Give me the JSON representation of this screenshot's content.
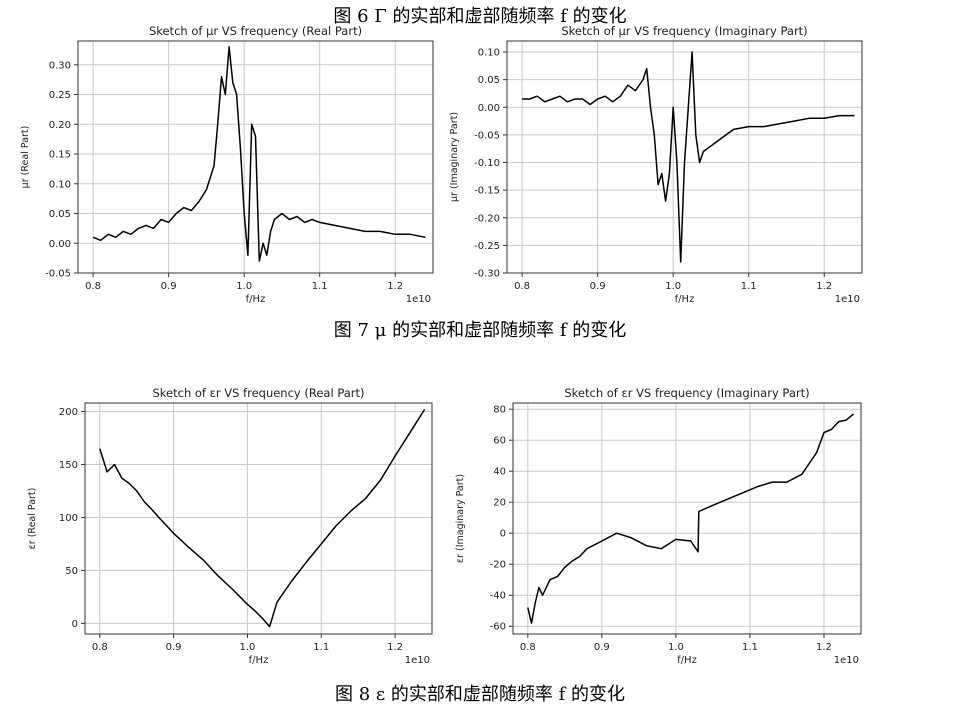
{
  "captions": {
    "fig6": "图 6    Γ 的实部和虚部随频率 f 的变化",
    "fig7": "图 7   μ 的实部和虚部随频率 f 的变化",
    "fig8": "图 8   ε 的实部和虚部随频率 f 的变化"
  },
  "chart_data": [
    {
      "type": "line",
      "title": "Sketch of μr VS frequency (Real Part)",
      "xlabel": "f/Hz",
      "ylabel": "μr (Real Part)",
      "x_scale_label": "1e10",
      "xlim": [
        0.78,
        1.25
      ],
      "ylim": [
        -0.05,
        0.34
      ],
      "xticks": [
        0.8,
        0.9,
        1.0,
        1.1,
        1.2
      ],
      "yticks": [
        -0.05,
        0.0,
        0.05,
        0.1,
        0.15,
        0.2,
        0.25,
        0.3
      ],
      "grid": true,
      "x": [
        0.8,
        0.81,
        0.82,
        0.83,
        0.84,
        0.85,
        0.86,
        0.87,
        0.88,
        0.89,
        0.9,
        0.91,
        0.92,
        0.93,
        0.94,
        0.95,
        0.96,
        0.965,
        0.97,
        0.975,
        0.98,
        0.985,
        0.99,
        0.995,
        1.0,
        1.005,
        1.01,
        1.015,
        1.02,
        1.025,
        1.03,
        1.035,
        1.04,
        1.05,
        1.06,
        1.07,
        1.08,
        1.09,
        1.1,
        1.12,
        1.14,
        1.16,
        1.18,
        1.2,
        1.22,
        1.24
      ],
      "y": [
        0.01,
        0.005,
        0.015,
        0.01,
        0.02,
        0.015,
        0.025,
        0.03,
        0.025,
        0.04,
        0.035,
        0.05,
        0.06,
        0.055,
        0.07,
        0.09,
        0.13,
        0.2,
        0.28,
        0.25,
        0.33,
        0.27,
        0.25,
        0.16,
        0.05,
        -0.02,
        0.2,
        0.18,
        -0.03,
        0.0,
        -0.02,
        0.02,
        0.04,
        0.05,
        0.04,
        0.045,
        0.035,
        0.04,
        0.035,
        0.03,
        0.025,
        0.02,
        0.02,
        0.015,
        0.015,
        0.01
      ]
    },
    {
      "type": "line",
      "title": "Sketch of μr VS frequency (Imaginary Part)",
      "xlabel": "f/Hz",
      "ylabel": "μr (Imaginary Part)",
      "x_scale_label": "1e10",
      "xlim": [
        0.78,
        1.25
      ],
      "ylim": [
        -0.3,
        0.12
      ],
      "xticks": [
        0.8,
        0.9,
        1.0,
        1.1,
        1.2
      ],
      "yticks": [
        -0.3,
        -0.25,
        -0.2,
        -0.15,
        -0.1,
        -0.05,
        0.0,
        0.05,
        0.1
      ],
      "grid": true,
      "x": [
        0.8,
        0.81,
        0.82,
        0.83,
        0.84,
        0.85,
        0.86,
        0.87,
        0.88,
        0.89,
        0.9,
        0.91,
        0.92,
        0.93,
        0.94,
        0.95,
        0.96,
        0.965,
        0.97,
        0.975,
        0.98,
        0.985,
        0.99,
        0.995,
        1.0,
        1.005,
        1.01,
        1.015,
        1.02,
        1.025,
        1.03,
        1.035,
        1.04,
        1.05,
        1.06,
        1.07,
        1.08,
        1.1,
        1.12,
        1.14,
        1.16,
        1.18,
        1.2,
        1.22,
        1.24
      ],
      "y": [
        0.015,
        0.015,
        0.02,
        0.01,
        0.015,
        0.02,
        0.01,
        0.015,
        0.015,
        0.005,
        0.015,
        0.02,
        0.01,
        0.02,
        0.04,
        0.03,
        0.05,
        0.07,
        0.0,
        -0.05,
        -0.14,
        -0.12,
        -0.17,
        -0.12,
        0.0,
        -0.1,
        -0.28,
        -0.1,
        0.0,
        0.1,
        -0.05,
        -0.1,
        -0.08,
        -0.07,
        -0.06,
        -0.05,
        -0.04,
        -0.035,
        -0.035,
        -0.03,
        -0.025,
        -0.02,
        -0.02,
        -0.015,
        -0.015
      ]
    },
    {
      "type": "line",
      "title": "Sketch of εr VS frequency (Real Part)",
      "xlabel": "f/Hz",
      "ylabel": "εr (Real Part)",
      "x_scale_label": "1e10",
      "xlim": [
        0.78,
        1.25
      ],
      "ylim": [
        -10,
        208
      ],
      "xticks": [
        0.8,
        0.9,
        1.0,
        1.1,
        1.2
      ],
      "yticks": [
        0,
        50,
        100,
        150,
        200
      ],
      "grid": true,
      "x": [
        0.8,
        0.81,
        0.82,
        0.83,
        0.84,
        0.85,
        0.86,
        0.87,
        0.88,
        0.9,
        0.92,
        0.94,
        0.96,
        0.98,
        1.0,
        1.01,
        1.02,
        1.03,
        1.04,
        1.06,
        1.08,
        1.1,
        1.12,
        1.14,
        1.16,
        1.18,
        1.2,
        1.22,
        1.24
      ],
      "y": [
        165,
        143,
        150,
        137,
        132,
        125,
        115,
        108,
        100,
        85,
        72,
        60,
        45,
        32,
        18,
        12,
        5,
        -3,
        20,
        40,
        58,
        75,
        92,
        106,
        118,
        135,
        158,
        180,
        202
      ]
    },
    {
      "type": "line",
      "title": "Sketch of εr VS frequency (Imaginary Part)",
      "xlabel": "f/Hz",
      "ylabel": "εr (Imaginary Part)",
      "x_scale_label": "1e10",
      "xlim": [
        0.78,
        1.25
      ],
      "ylim": [
        -65,
        84
      ],
      "xticks": [
        0.8,
        0.9,
        1.0,
        1.1,
        1.2
      ],
      "yticks": [
        -60,
        -40,
        -20,
        0,
        20,
        40,
        60,
        80
      ],
      "grid": true,
      "x": [
        0.8,
        0.805,
        0.81,
        0.815,
        0.82,
        0.83,
        0.84,
        0.85,
        0.86,
        0.87,
        0.88,
        0.9,
        0.92,
        0.94,
        0.96,
        0.98,
        1.0,
        1.02,
        1.03,
        1.031,
        1.05,
        1.07,
        1.09,
        1.11,
        1.13,
        1.15,
        1.17,
        1.18,
        1.19,
        1.2,
        1.21,
        1.22,
        1.23,
        1.24
      ],
      "y": [
        -48,
        -58,
        -45,
        -35,
        -40,
        -30,
        -28,
        -22,
        -18,
        -15,
        -10,
        -5,
        0,
        -3,
        -8,
        -10,
        -4,
        -5,
        -12,
        14,
        18,
        22,
        26,
        30,
        33,
        33,
        38,
        45,
        52,
        65,
        67,
        72,
        73,
        77
      ]
    }
  ]
}
